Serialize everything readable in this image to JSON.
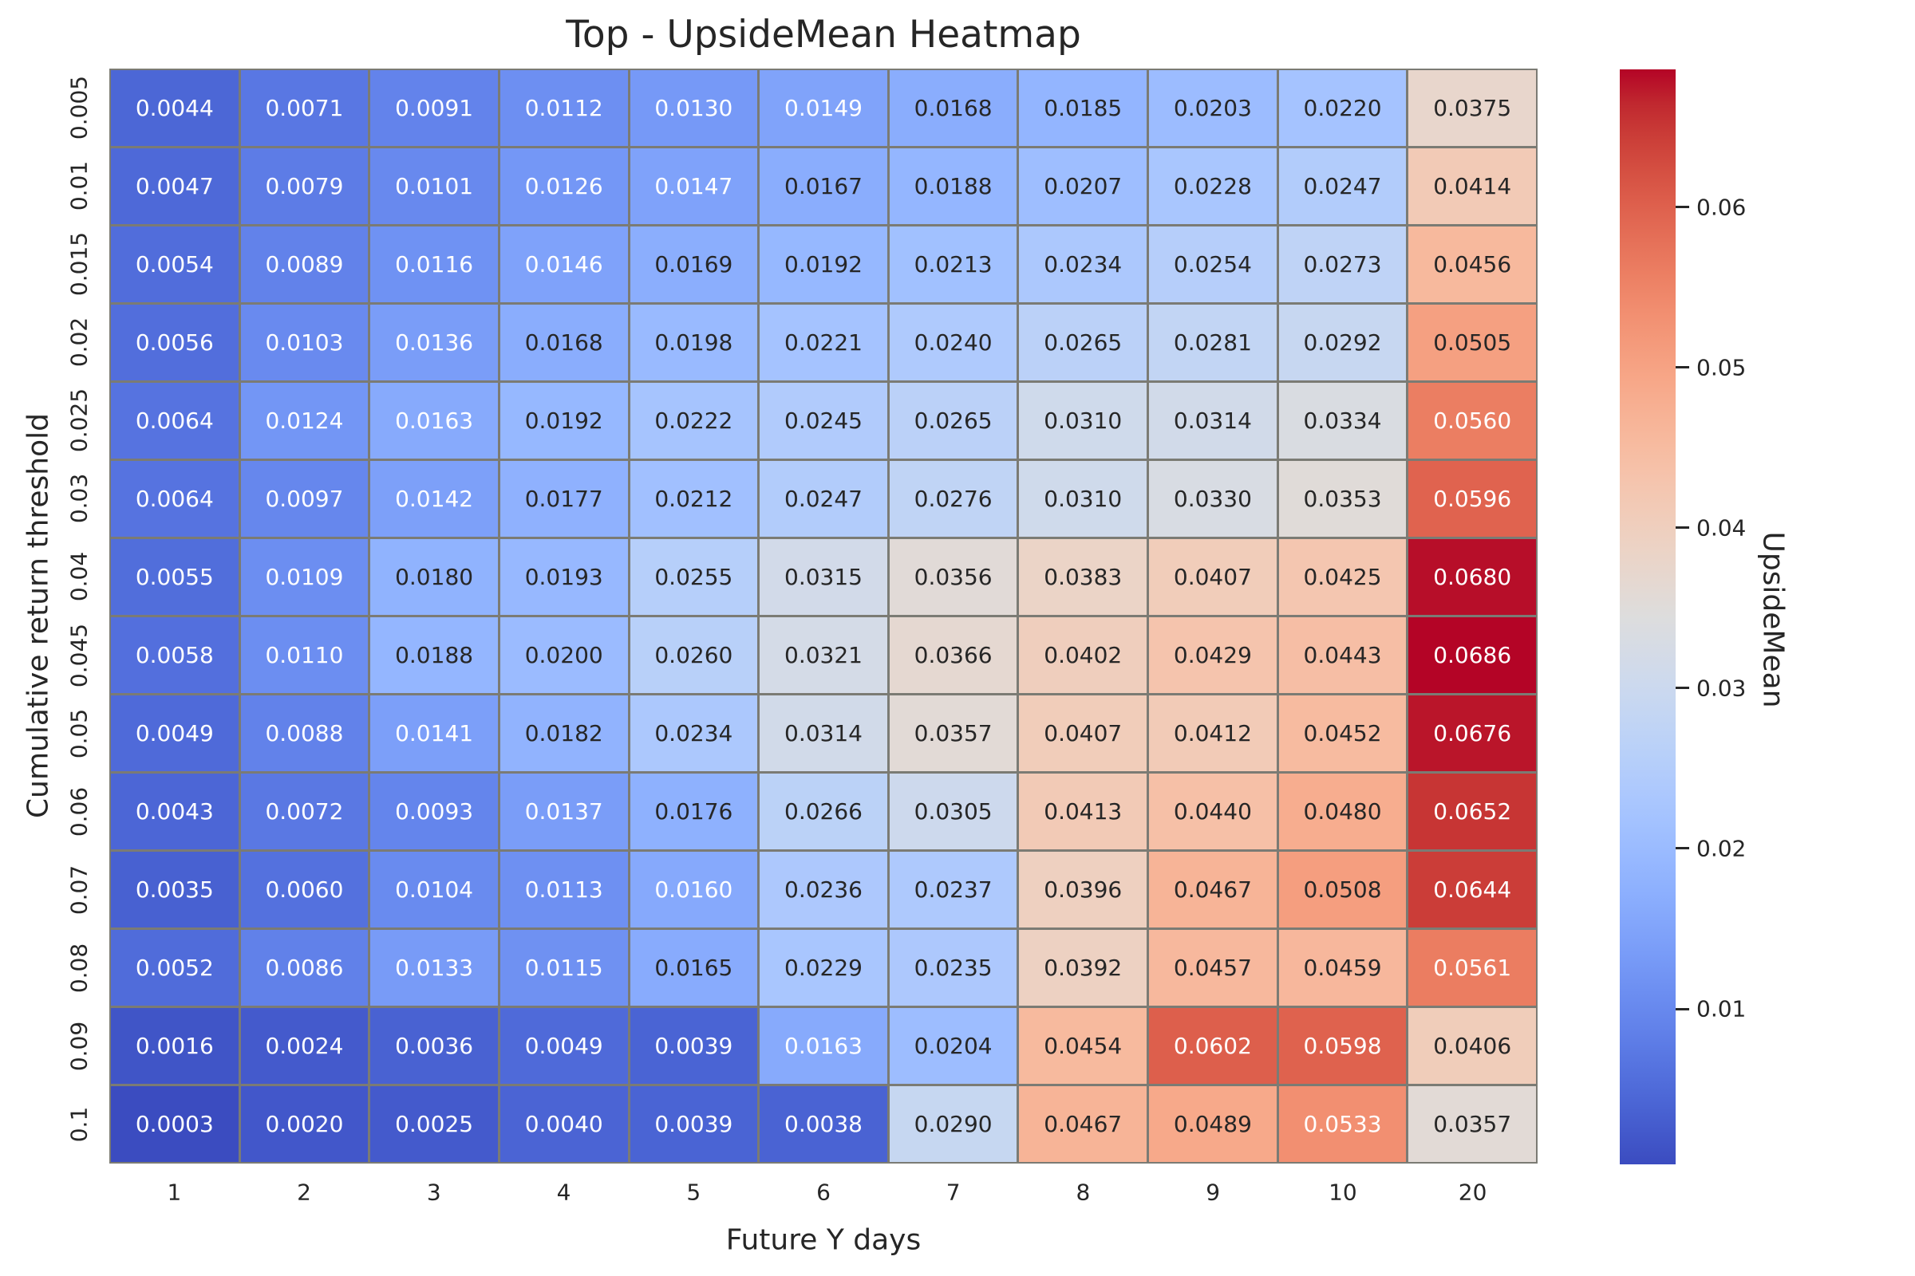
{
  "figure": {
    "background": "#ffffff"
  },
  "chart_data": {
    "type": "heatmap",
    "title": "Top - UpsideMean Heatmap",
    "xlabel": "Future Y days",
    "ylabel": "Cumulative return threshold",
    "x_categories": [
      "1",
      "2",
      "3",
      "4",
      "5",
      "6",
      "7",
      "8",
      "9",
      "10",
      "20"
    ],
    "y_categories": [
      "0.005",
      "0.01",
      "0.015",
      "0.02",
      "0.025",
      "0.03",
      "0.04",
      "0.045",
      "0.05",
      "0.06",
      "0.07",
      "0.08",
      "0.09",
      "0.1"
    ],
    "values": [
      [
        0.0044,
        0.0071,
        0.0091,
        0.0112,
        0.013,
        0.0149,
        0.0168,
        0.0185,
        0.0203,
        0.022,
        0.0375
      ],
      [
        0.0047,
        0.0079,
        0.0101,
        0.0126,
        0.0147,
        0.0167,
        0.0188,
        0.0207,
        0.0228,
        0.0247,
        0.0414
      ],
      [
        0.0054,
        0.0089,
        0.0116,
        0.0146,
        0.0169,
        0.0192,
        0.0213,
        0.0234,
        0.0254,
        0.0273,
        0.0456
      ],
      [
        0.0056,
        0.0103,
        0.0136,
        0.0168,
        0.0198,
        0.0221,
        0.024,
        0.0265,
        0.0281,
        0.0292,
        0.0505
      ],
      [
        0.0064,
        0.0124,
        0.0163,
        0.0192,
        0.0222,
        0.0245,
        0.0265,
        0.031,
        0.0314,
        0.0334,
        0.056
      ],
      [
        0.0064,
        0.0097,
        0.0142,
        0.0177,
        0.0212,
        0.0247,
        0.0276,
        0.031,
        0.033,
        0.0353,
        0.0596
      ],
      [
        0.0055,
        0.0109,
        0.018,
        0.0193,
        0.0255,
        0.0315,
        0.0356,
        0.0383,
        0.0407,
        0.0425,
        0.068
      ],
      [
        0.0058,
        0.011,
        0.0188,
        0.02,
        0.026,
        0.0321,
        0.0366,
        0.0402,
        0.0429,
        0.0443,
        0.0686
      ],
      [
        0.0049,
        0.0088,
        0.0141,
        0.0182,
        0.0234,
        0.0314,
        0.0357,
        0.0407,
        0.0412,
        0.0452,
        0.0676
      ],
      [
        0.0043,
        0.0072,
        0.0093,
        0.0137,
        0.0176,
        0.0266,
        0.0305,
        0.0413,
        0.044,
        0.048,
        0.0652
      ],
      [
        0.0035,
        0.006,
        0.0104,
        0.0113,
        0.016,
        0.0236,
        0.0237,
        0.0396,
        0.0467,
        0.0508,
        0.0644
      ],
      [
        0.0052,
        0.0086,
        0.0133,
        0.0115,
        0.0165,
        0.0229,
        0.0235,
        0.0392,
        0.0457,
        0.0459,
        0.0561
      ],
      [
        0.0016,
        0.0024,
        0.0036,
        0.0049,
        0.0039,
        0.0163,
        0.0204,
        0.0454,
        0.0602,
        0.0598,
        0.0406
      ],
      [
        0.0003,
        0.002,
        0.0025,
        0.004,
        0.0039,
        0.0038,
        0.029,
        0.0467,
        0.0489,
        0.0533,
        0.0357
      ]
    ],
    "vmin": 0.0003,
    "vmax": 0.0686,
    "colormap": "coolwarm",
    "annot_format": ".4f",
    "grid_on": false,
    "legend_position": "none",
    "grid_line_color": "#7b7b74",
    "colorbar": {
      "label": "UpsideMean",
      "ticks": [
        0.01,
        0.02,
        0.03,
        0.04,
        0.05,
        0.06
      ]
    },
    "colors": {
      "low": "#3b4cc0",
      "mid": "#dddddd",
      "high": "#b40426",
      "annot_dark": "#262626",
      "annot_light": "#ffffff"
    }
  }
}
